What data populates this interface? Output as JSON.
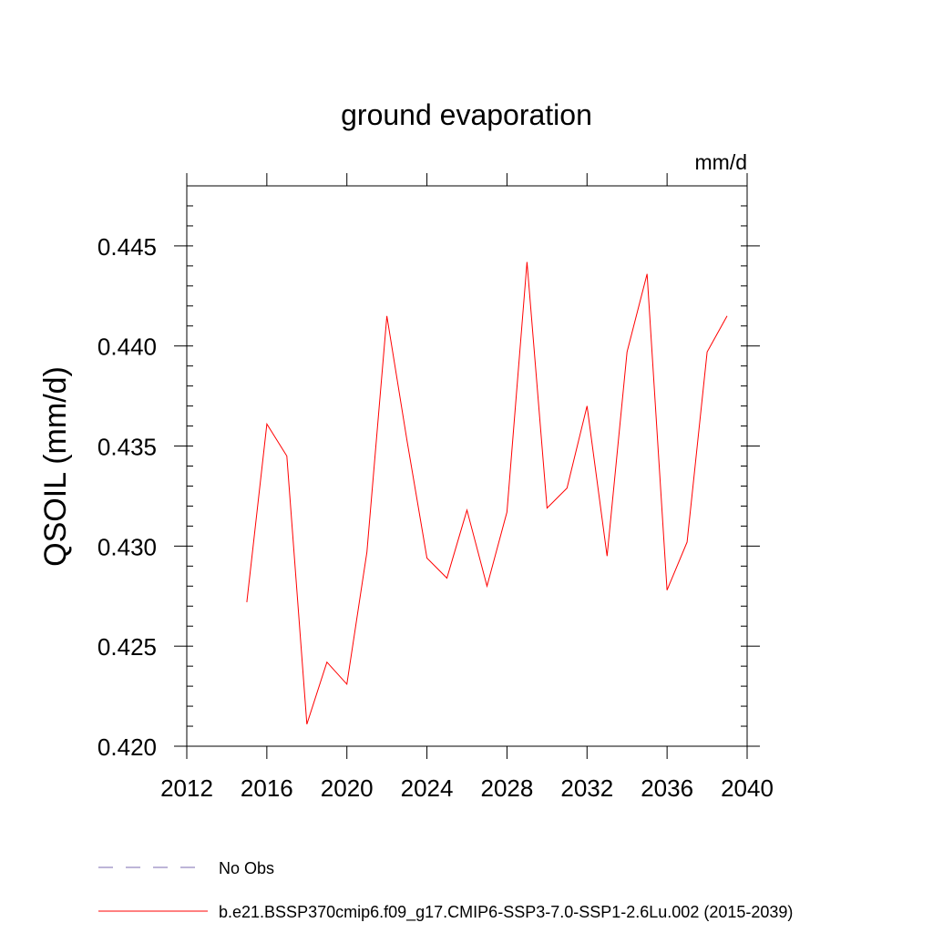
{
  "chart_data": {
    "type": "line",
    "title": "ground evaporation",
    "units": "mm/d",
    "ylabel": "QSOIL  (mm/d)",
    "xlabel": "",
    "xlim": [
      2012,
      2040
    ],
    "ylim": [
      0.42,
      0.448
    ],
    "x_ticks": [
      2012,
      2016,
      2020,
      2024,
      2028,
      2032,
      2036,
      2040
    ],
    "x_tick_labels": [
      "2012",
      "2016",
      "2020",
      "2024",
      "2028",
      "2032",
      "2036",
      "2040"
    ],
    "y_ticks": [
      0.42,
      0.425,
      0.43,
      0.435,
      0.44,
      0.445
    ],
    "y_tick_labels": [
      "0.420",
      "0.425",
      "0.430",
      "0.435",
      "0.440",
      "0.445"
    ],
    "grid": false,
    "legend_position": "bottom",
    "series": [
      {
        "name": "b.e21.BSSP370cmip6.f09_g17.CMIP6-SSP3-7.0-SSP1-2.6Lu.002 (2015-2039)",
        "color": "#ff0000",
        "style": "solid",
        "x": [
          2015,
          2016,
          2017,
          2018,
          2019,
          2020,
          2021,
          2022,
          2023,
          2024,
          2025,
          2026,
          2027,
          2028,
          2029,
          2030,
          2031,
          2032,
          2033,
          2034,
          2035,
          2036,
          2037,
          2038,
          2039
        ],
        "values": [
          0.4272,
          0.4361,
          0.4345,
          0.4211,
          0.4242,
          0.4231,
          0.4297,
          0.4415,
          0.4353,
          0.4294,
          0.4284,
          0.4318,
          0.428,
          0.4317,
          0.4442,
          0.4319,
          0.4329,
          0.437,
          0.4295,
          0.4397,
          0.4436,
          0.4278,
          0.4302,
          0.4397,
          0.4415
        ]
      }
    ],
    "legend": [
      {
        "label": "No Obs",
        "color": "#7b6bb0",
        "style": "dashed"
      },
      {
        "label": "b.e21.BSSP370cmip6.f09_g17.CMIP6-SSP3-7.0-SSP1-2.6Lu.002 (2015-2039)",
        "color": "#ff0000",
        "style": "solid"
      }
    ]
  }
}
